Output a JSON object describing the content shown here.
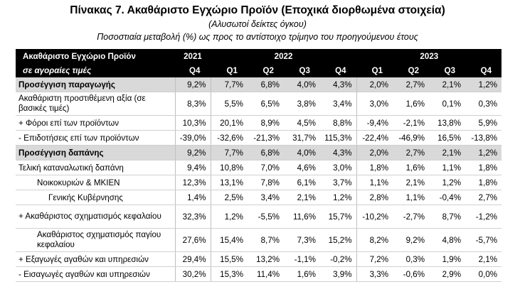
{
  "header": {
    "title": "Πίνακας 7. Ακαθάριστο Εγχώριο Προϊόν (Εποχικά διορθωμένα στοιχεία)",
    "subtitle1": "(Αλυσωτοί δείκτες όγκου)",
    "subtitle2": "Ποσοστιαία μεταβολή (%) ως προς το αντίστοιχο τρίμηνο του προηγούμενου έτους"
  },
  "table": {
    "head_label_1": "Ακαθάριστο Εγχώριο Προϊόν",
    "head_label_2": "σε αγοραίες τιμές",
    "years": [
      "2021",
      "2022",
      "2023"
    ],
    "quarters": [
      "Q4",
      "Q1",
      "Q2",
      "Q3",
      "Q4",
      "Q1",
      "Q2",
      "Q3",
      "Q4"
    ],
    "rows": [
      {
        "label": "Προσέγγιση παραγωγής",
        "values": [
          "9,2%",
          "7,7%",
          "6,8%",
          "4,0%",
          "4,3%",
          "2,0%",
          "2,7%",
          "2,1%",
          "1,2%"
        ]
      },
      {
        "label": "Ακαθάριστη προστιθέμενη αξία (σε βασικές τιμές)",
        "values": [
          "8,3%",
          "5,5%",
          "6,5%",
          "3,8%",
          "3,4%",
          "3,0%",
          "1,6%",
          "0,1%",
          "0,3%"
        ]
      },
      {
        "label": "+  Φόροι επί των προϊόντων",
        "values": [
          "10,3%",
          "20,1%",
          "8,9%",
          "4,5%",
          "8,8%",
          "-9,4%",
          "-2,1%",
          "13,8%",
          "5,9%"
        ]
      },
      {
        "label": "-   Επιδοτήσεις επί των προϊόντων",
        "values": [
          "-39,0%",
          "-32,6%",
          "-21,3%",
          "31,7%",
          "115,3%",
          "-22,4%",
          "-46,9%",
          "16,5%",
          "-13,8%"
        ]
      },
      {
        "label": "Προσέγγιση δαπάνης",
        "values": [
          "9,2%",
          "7,7%",
          "6,8%",
          "4,0%",
          "4,3%",
          "2,0%",
          "2,7%",
          "2,1%",
          "1,2%"
        ]
      },
      {
        "label": "Τελική καταναλωτική δαπάνη",
        "values": [
          "9,4%",
          "10,8%",
          "7,0%",
          "4,6%",
          "3,0%",
          "1,8%",
          "1,6%",
          "1,1%",
          "1,8%"
        ]
      },
      {
        "label": "Νοικοκυριών & ΜΚΙΕΝ",
        "values": [
          "12,3%",
          "13,1%",
          "7,8%",
          "6,1%",
          "3,7%",
          "1,1%",
          "2,1%",
          "1,2%",
          "1,8%"
        ]
      },
      {
        "label": "Γενικής Κυβέρνησης",
        "values": [
          "1,4%",
          "2,5%",
          "3,4%",
          "2,1%",
          "1,2%",
          "2,8%",
          "1,1%",
          "-0,4%",
          "2,7%"
        ]
      },
      {
        "label": "+ Ακαθάριστος σχηματισμός κεφαλαίου",
        "values": [
          "32,3%",
          "1,2%",
          "-5,5%",
          "11,6%",
          "15,7%",
          "-10,2%",
          "-2,7%",
          "8,7%",
          "-1,2%"
        ]
      },
      {
        "label": "Ακαθάριστος σχηματισμός παγίου κεφαλαίου",
        "values": [
          "27,6%",
          "15,4%",
          "8,7%",
          "7,3%",
          "15,2%",
          "8,2%",
          "9,2%",
          "4,8%",
          "-5,7%"
        ]
      },
      {
        "label": "+ Εξαγωγές αγαθών και υπηρεσιών",
        "values": [
          "29,4%",
          "15,5%",
          "13,2%",
          "-1,1%",
          "-0,2%",
          "7,2%",
          "0,3%",
          "1,9%",
          "2,1%"
        ]
      },
      {
        "label": "-  Εισαγωγές αγαθών και υπηρεσιών",
        "values": [
          "30,2%",
          "15,3%",
          "11,4%",
          "1,6%",
          "3,9%",
          "3,3%",
          "-0,6%",
          "2,9%",
          "0,0%"
        ]
      }
    ]
  }
}
